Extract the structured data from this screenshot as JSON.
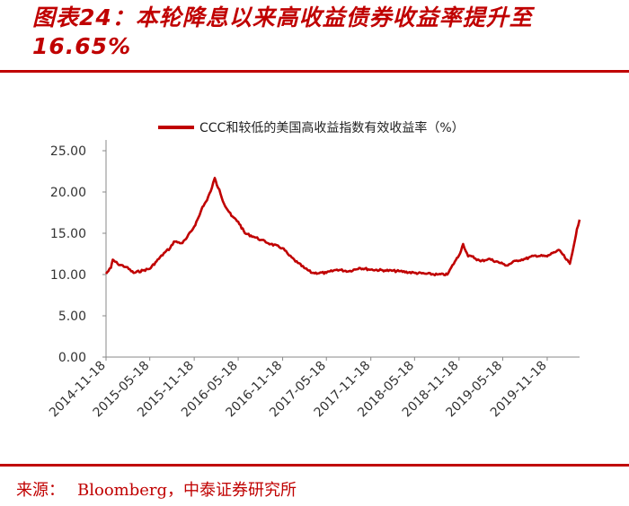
{
  "figure": {
    "title": "图表24：本轮降息以来高收益债券收益率提升至16.65%",
    "source_label": "来源：",
    "source_value": "Bloomberg，中泰证券研究所"
  },
  "colors": {
    "accent": "#c00000",
    "line": "#c00000",
    "axis": "#888888"
  },
  "chart_data": {
    "type": "line",
    "title": "",
    "xlabel": "",
    "ylabel": "",
    "ylim": [
      0,
      25
    ],
    "yticks": [
      "25.00",
      "20.00",
      "15.00",
      "10.00",
      "5.00",
      "0.00"
    ],
    "xticks": [
      "2014-11-18",
      "2015-05-18",
      "2015-11-18",
      "2016-05-18",
      "2016-11-18",
      "2017-05-18",
      "2017-11-18",
      "2018-05-18",
      "2018-11-18",
      "2019-05-18",
      "2019-11-18"
    ],
    "x_range": [
      "2014-11-18",
      "2020-03-31"
    ],
    "grid": false,
    "legend_position": "top-center",
    "series": [
      {
        "name": "CCC和较低的美国高收益指数有效收益率（%）",
        "color": "#c00000",
        "x": [
          "2014-11-18",
          "2014-12-08",
          "2014-12-16",
          "2015-01-05",
          "2015-02-10",
          "2015-03-12",
          "2015-04-20",
          "2015-05-18",
          "2015-06-15",
          "2015-07-20",
          "2015-08-10",
          "2015-08-26",
          "2015-09-30",
          "2015-10-15",
          "2015-11-18",
          "2015-12-10",
          "2015-12-22",
          "2016-01-10",
          "2016-01-30",
          "2016-02-11",
          "2016-02-20",
          "2016-03-01",
          "2016-03-20",
          "2016-04-20",
          "2016-05-18",
          "2016-06-15",
          "2016-07-20",
          "2016-08-20",
          "2016-09-30",
          "2016-11-18",
          "2016-12-15",
          "2017-01-20",
          "2017-02-15",
          "2017-03-20",
          "2017-05-18",
          "2017-07-01",
          "2017-08-20",
          "2017-10-01",
          "2017-11-18",
          "2018-01-15",
          "2018-03-15",
          "2018-05-18",
          "2018-07-01",
          "2018-08-20",
          "2018-10-01",
          "2018-11-01",
          "2018-11-18",
          "2018-12-05",
          "2018-12-26",
          "2019-01-10",
          "2019-02-15",
          "2019-03-20",
          "2019-05-18",
          "2019-06-03",
          "2019-07-15",
          "2019-08-20",
          "2019-10-01",
          "2019-11-18",
          "2019-12-15",
          "2020-01-10",
          "2020-01-31",
          "2020-02-15",
          "2020-02-20",
          "2020-03-01",
          "2020-03-12",
          "2020-03-20",
          "2020-03-31"
        ],
        "values": [
          10.1,
          10.8,
          11.8,
          11.3,
          10.9,
          10.2,
          10.5,
          10.7,
          11.6,
          12.7,
          13.2,
          14.0,
          13.8,
          14.3,
          15.8,
          17.2,
          18.2,
          19.0,
          20.5,
          21.7,
          20.8,
          20.3,
          18.6,
          17.1,
          16.4,
          15.0,
          14.6,
          14.2,
          13.7,
          13.2,
          12.3,
          11.4,
          10.8,
          10.2,
          10.2,
          10.6,
          10.4,
          10.8,
          10.6,
          10.5,
          10.4,
          10.2,
          10.1,
          10.0,
          10.0,
          11.6,
          12.3,
          13.7,
          12.2,
          12.2,
          11.6,
          11.9,
          11.3,
          11.1,
          11.7,
          11.9,
          12.3,
          12.2,
          12.7,
          12.9,
          12.0,
          11.5,
          11.3,
          12.6,
          14.2,
          15.5,
          16.65
        ]
      }
    ]
  }
}
